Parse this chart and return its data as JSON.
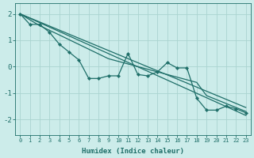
{
  "xlabel": "Humidex (Indice chaleur)",
  "background_color": "#ccecea",
  "grid_color": "#aad4d0",
  "line_color": "#1e6e68",
  "xlim": [
    -0.5,
    23.5
  ],
  "ylim": [
    -2.6,
    2.4
  ],
  "yticks": [
    -2,
    -1,
    0,
    1,
    2
  ],
  "xticks": [
    0,
    1,
    2,
    3,
    4,
    5,
    6,
    7,
    8,
    9,
    10,
    11,
    12,
    13,
    14,
    15,
    16,
    17,
    18,
    19,
    20,
    21,
    22,
    23
  ],
  "smooth_upper": {
    "x": [
      0,
      23
    ],
    "y": [
      2.0,
      -1.55
    ]
  },
  "smooth_lower": {
    "x": [
      0,
      23
    ],
    "y": [
      2.0,
      -1.85
    ]
  },
  "smooth_mid": {
    "x": [
      0,
      2,
      4,
      9,
      14,
      18,
      19,
      23
    ],
    "y": [
      2.0,
      1.55,
      1.2,
      0.3,
      -0.2,
      -0.6,
      -1.1,
      -1.7
    ]
  },
  "data_line": {
    "x": [
      0,
      1,
      2,
      3,
      4,
      5,
      6,
      7,
      8,
      9,
      10,
      11,
      12,
      13,
      14,
      15,
      16,
      17,
      18,
      19,
      20,
      21,
      22,
      23
    ],
    "y": [
      2.0,
      1.6,
      1.6,
      1.3,
      0.85,
      0.55,
      0.25,
      -0.45,
      -0.45,
      -0.35,
      -0.35,
      0.5,
      -0.3,
      -0.35,
      -0.2,
      0.15,
      -0.05,
      -0.05,
      -1.2,
      -1.65,
      -1.65,
      -1.5,
      -1.6,
      -1.75
    ]
  }
}
